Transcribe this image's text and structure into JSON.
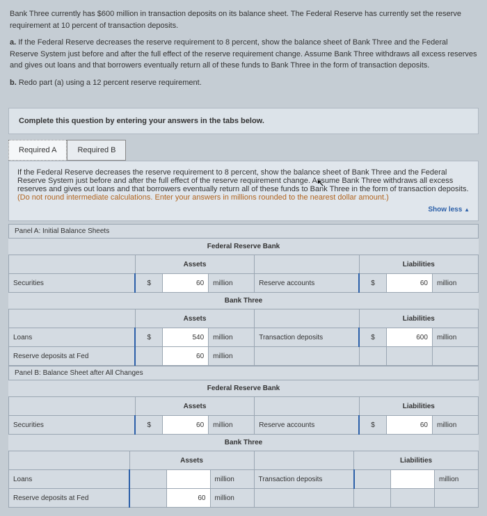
{
  "problem": {
    "intro": "Bank Three currently has $600 million in transaction deposits on its balance sheet. The Federal Reserve has currently set the reserve requirement at 10 percent of transaction deposits.",
    "a_label": "a.",
    "a_text": " If the Federal Reserve decreases the reserve requirement to 8 percent, show the balance sheet of Bank Three and the Federal Reserve System just before and after the full effect of the reserve requirement change. Assume Bank Three withdraws all excess reserves and gives out loans and that borrowers eventually return all of these funds to Bank Three in the form of transaction deposits.",
    "b_label": "b.",
    "b_text": " Redo part (a) using a 12 percent reserve requirement."
  },
  "instruction": "Complete this question by entering your answers in the tabs below.",
  "tabs": {
    "a": "Required A",
    "b": "Required B"
  },
  "panel": {
    "text": "If the Federal Reserve decreases the reserve requirement to 8 percent, show the balance sheet of Bank Three and the Federal Reserve System just before and after the full effect of the reserve requirement change. Assume Bank Three withdraws all excess reserves and gives out loans and that borrowers eventually return all of these funds to Bank Three in the form of transaction deposits. ",
    "hint": "(Do not round intermediate calculations. Enter your answers in millions rounded to the nearest dollar amount.)",
    "showless": "Show less"
  },
  "labels": {
    "panelA": "Panel A: Initial Balance Sheets",
    "panelB": "Panel B: Balance Sheet after All Changes",
    "frb": "Federal Reserve Bank",
    "bank3": "Bank Three",
    "assets": "Assets",
    "liabilities": "Liabilities",
    "securities": "Securities",
    "reserve_accounts": "Reserve accounts",
    "loans": "Loans",
    "reserve_deposits": "Reserve deposits at Fed",
    "trans_deposits": "Transaction deposits",
    "dollar": "$",
    "million": "million"
  },
  "values": {
    "frb_a_sec": "60",
    "frb_a_res": "60",
    "b3_a_loans": "540",
    "b3_a_resdep": "60",
    "b3_a_trans": "600",
    "frb_b_sec": "60",
    "frb_b_res": "60",
    "b3_b_loans": "",
    "b3_b_resdep": "60",
    "b3_b_trans": ""
  },
  "colors": {
    "link": "#2b5fa8",
    "hint": "#b0641f",
    "bg": "#c5cdd4",
    "border": "#9aa6b2",
    "input_border": "#2b5fa8"
  }
}
